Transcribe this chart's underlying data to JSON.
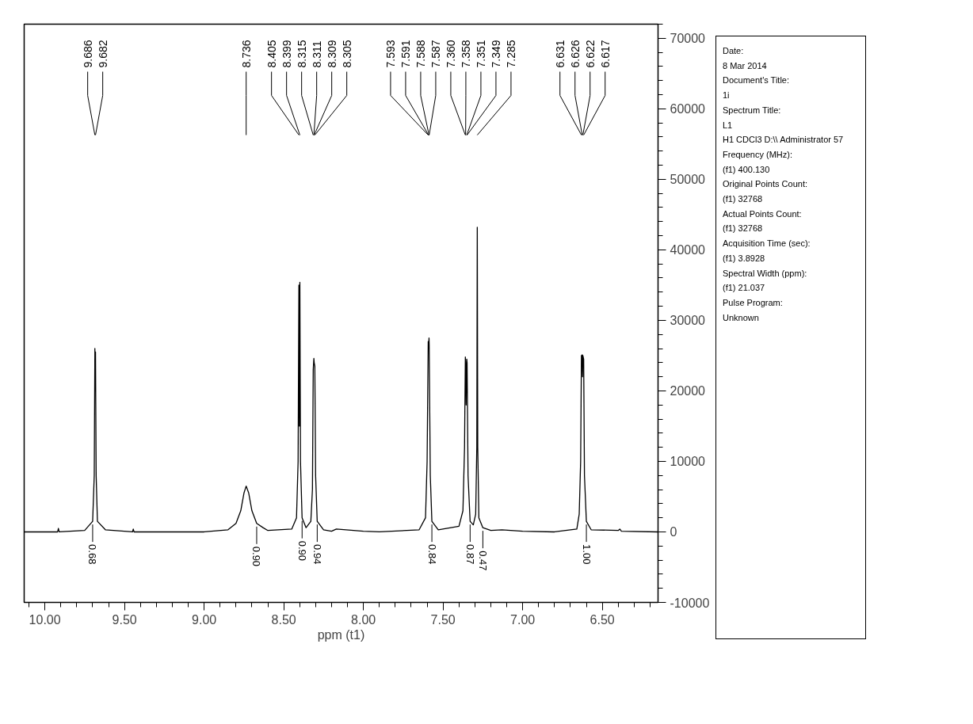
{
  "chart_data": {
    "type": "line",
    "xlabel": "ppm (t1)",
    "grid": false,
    "marker": "none",
    "line_style": "solid",
    "xlim": [
      10.13,
      6.15
    ],
    "ylim": [
      -10000,
      72000
    ],
    "xticks": [
      {
        "value": 10.1,
        "label": null
      },
      {
        "value": 10.0,
        "label": "10.00"
      },
      {
        "value": 9.9,
        "label": null
      },
      {
        "value": 9.8,
        "label": null
      },
      {
        "value": 9.7,
        "label": null
      },
      {
        "value": 9.6,
        "label": null
      },
      {
        "value": 9.5,
        "label": "9.50"
      },
      {
        "value": 9.4,
        "label": null
      },
      {
        "value": 9.3,
        "label": null
      },
      {
        "value": 9.2,
        "label": null
      },
      {
        "value": 9.1,
        "label": null
      },
      {
        "value": 9.0,
        "label": "9.00"
      },
      {
        "value": 8.9,
        "label": null
      },
      {
        "value": 8.8,
        "label": null
      },
      {
        "value": 8.7,
        "label": null
      },
      {
        "value": 8.6,
        "label": null
      },
      {
        "value": 8.5,
        "label": "8.50"
      },
      {
        "value": 8.4,
        "label": null
      },
      {
        "value": 8.3,
        "label": null
      },
      {
        "value": 8.2,
        "label": null
      },
      {
        "value": 8.1,
        "label": null
      },
      {
        "value": 8.0,
        "label": "8.00"
      },
      {
        "value": 7.9,
        "label": null
      },
      {
        "value": 7.8,
        "label": null
      },
      {
        "value": 7.7,
        "label": null
      },
      {
        "value": 7.6,
        "label": null
      },
      {
        "value": 7.5,
        "label": "7.50"
      },
      {
        "value": 7.4,
        "label": null
      },
      {
        "value": 7.3,
        "label": null
      },
      {
        "value": 7.2,
        "label": null
      },
      {
        "value": 7.1,
        "label": null
      },
      {
        "value": 7.0,
        "label": "7.00"
      },
      {
        "value": 6.9,
        "label": null
      },
      {
        "value": 6.8,
        "label": null
      },
      {
        "value": 6.7,
        "label": null
      },
      {
        "value": 6.6,
        "label": null
      },
      {
        "value": 6.5,
        "label": "6.50"
      },
      {
        "value": 6.4,
        "label": null
      },
      {
        "value": 6.3,
        "label": null
      },
      {
        "value": 6.2,
        "label": null
      }
    ],
    "yticks": [
      -10000,
      {
        "value": -8000,
        "label": null
      },
      {
        "value": -6000,
        "label": null
      },
      {
        "value": -4000,
        "label": null
      },
      {
        "value": -2000,
        "label": null
      },
      0,
      {
        "value": 2000,
        "label": null
      },
      {
        "value": 4000,
        "label": null
      },
      {
        "value": 6000,
        "label": null
      },
      {
        "value": 8000,
        "label": null
      },
      10000,
      {
        "value": 12000,
        "label": null
      },
      {
        "value": 14000,
        "label": null
      },
      {
        "value": 16000,
        "label": null
      },
      {
        "value": 18000,
        "label": null
      },
      20000,
      {
        "value": 22000,
        "label": null
      },
      {
        "value": 24000,
        "label": null
      },
      {
        "value": 26000,
        "label": null
      },
      {
        "value": 28000,
        "label": null
      },
      30000,
      {
        "value": 32000,
        "label": null
      },
      {
        "value": 34000,
        "label": null
      },
      {
        "value": 36000,
        "label": null
      },
      {
        "value": 38000,
        "label": null
      },
      40000,
      {
        "value": 42000,
        "label": null
      },
      {
        "value": 44000,
        "label": null
      },
      {
        "value": 46000,
        "label": null
      },
      {
        "value": 48000,
        "label": null
      },
      50000,
      {
        "value": 52000,
        "label": null
      },
      {
        "value": 54000,
        "label": null
      },
      {
        "value": 56000,
        "label": null
      },
      {
        "value": 58000,
        "label": null
      },
      60000,
      {
        "value": 62000,
        "label": null
      },
      {
        "value": 64000,
        "label": null
      },
      {
        "value": 66000,
        "label": null
      },
      {
        "value": 68000,
        "label": null
      },
      70000,
      {
        "value": 72000,
        "label": null
      }
    ],
    "series": [
      {
        "color": "#000000",
        "x": [
          10.13,
          9.92,
          9.915,
          9.91,
          9.75,
          9.7,
          9.69,
          9.686,
          9.684,
          9.682,
          9.678,
          9.67,
          9.62,
          9.45,
          9.445,
          9.44,
          9.0,
          8.85,
          8.8,
          8.77,
          8.75,
          8.736,
          8.72,
          8.7,
          8.67,
          8.63,
          8.6,
          8.45,
          8.42,
          8.41,
          8.405,
          8.402,
          8.399,
          8.395,
          8.385,
          8.36,
          8.33,
          8.32,
          8.315,
          8.311,
          8.309,
          8.305,
          8.3,
          8.29,
          8.25,
          8.2,
          8.17,
          8.0,
          7.9,
          7.65,
          7.61,
          7.6,
          7.593,
          7.591,
          7.588,
          7.587,
          7.58,
          7.57,
          7.53,
          7.4,
          7.375,
          7.365,
          7.36,
          7.358,
          7.355,
          7.351,
          7.349,
          7.343,
          7.33,
          7.31,
          7.295,
          7.288,
          7.285,
          7.282,
          7.275,
          7.25,
          7.2,
          7.13,
          7.0,
          6.8,
          6.66,
          6.645,
          6.636,
          6.631,
          6.626,
          6.624,
          6.622,
          6.617,
          6.612,
          6.6,
          6.57,
          6.4,
          6.39,
          6.38,
          6.15
        ],
        "values": [
          0,
          0,
          500,
          0,
          200,
          1500,
          8000,
          26000,
          20000,
          25500,
          8000,
          1500,
          300,
          0,
          400,
          0,
          0,
          300,
          1200,
          3000,
          5500,
          6500,
          5500,
          3000,
          1200,
          600,
          200,
          400,
          2000,
          10000,
          35000,
          15000,
          35400,
          10000,
          2000,
          600,
          1500,
          6000,
          23000,
          24600,
          24000,
          23500,
          8000,
          1500,
          300,
          100,
          400,
          100,
          0,
          300,
          2000,
          10000,
          27000,
          26000,
          27500,
          26500,
          8000,
          1500,
          300,
          800,
          3000,
          12000,
          24800,
          24000,
          18000,
          24500,
          24000,
          8000,
          1500,
          1000,
          2500,
          12000,
          43200,
          12000,
          2000,
          600,
          200,
          300,
          100,
          0,
          400,
          2500,
          10000,
          25000,
          25100,
          22000,
          25000,
          24500,
          8000,
          1500,
          300,
          200,
          400,
          100,
          0
        ]
      }
    ],
    "annotations": [
      {
        "text": "9.686",
        "x": 9.686
      },
      {
        "text": "9.682",
        "x": 9.682
      },
      {
        "text": "8.736",
        "x": 8.736
      },
      {
        "text": "8.405",
        "x": 8.405
      },
      {
        "text": "8.399",
        "x": 8.399
      },
      {
        "text": "8.315",
        "x": 8.315
      },
      {
        "text": "8.311",
        "x": 8.311
      },
      {
        "text": "8.309",
        "x": 8.309
      },
      {
        "text": "8.305",
        "x": 8.305
      },
      {
        "text": "7.593",
        "x": 7.593
      },
      {
        "text": "7.591",
        "x": 7.591
      },
      {
        "text": "7.588",
        "x": 7.588
      },
      {
        "text": "7.587",
        "x": 7.587
      },
      {
        "text": "7.360",
        "x": 7.36
      },
      {
        "text": "7.358",
        "x": 7.358
      },
      {
        "text": "7.351",
        "x": 7.351
      },
      {
        "text": "7.349",
        "x": 7.349
      },
      {
        "text": "7.285",
        "x": 7.285
      },
      {
        "text": "6.631",
        "x": 6.631
      },
      {
        "text": "6.626",
        "x": 6.626
      },
      {
        "text": "6.622",
        "x": 6.622
      },
      {
        "text": "6.617",
        "x": 6.617
      },
      {
        "text": "0.68",
        "x": 9.7,
        "y": 1500
      },
      {
        "text": "0.90",
        "x": 8.67,
        "y": 1200
      },
      {
        "text": "0.90",
        "x": 8.385,
        "y": 2000
      },
      {
        "text": "0.94",
        "x": 8.29,
        "y": 1500
      },
      {
        "text": "0.84",
        "x": 7.57,
        "y": 1500
      },
      {
        "text": "0.87",
        "x": 7.33,
        "y": 1500
      },
      {
        "text": "0.47",
        "x": 7.25,
        "y": 600
      },
      {
        "text": "1.00",
        "x": 6.6,
        "y": 1500
      },
      "Date:",
      "8 Mar 2014",
      "Document's Title:",
      "1i",
      "Spectrum Title:",
      "L1",
      "H1 CDCl3 D:\\\\ Administrator 57",
      "Frequency (MHz):",
      "(f1) 400.130",
      "Original Points Count:",
      "(f1) 32768",
      "Actual Points Count:",
      "(f1) 32768",
      "Acquisition Time (sec):",
      "(f1) 3.8928",
      "Spectral Width (ppm):",
      "(f1) 21.037",
      "Pulse Program:",
      "Unknown"
    ]
  }
}
